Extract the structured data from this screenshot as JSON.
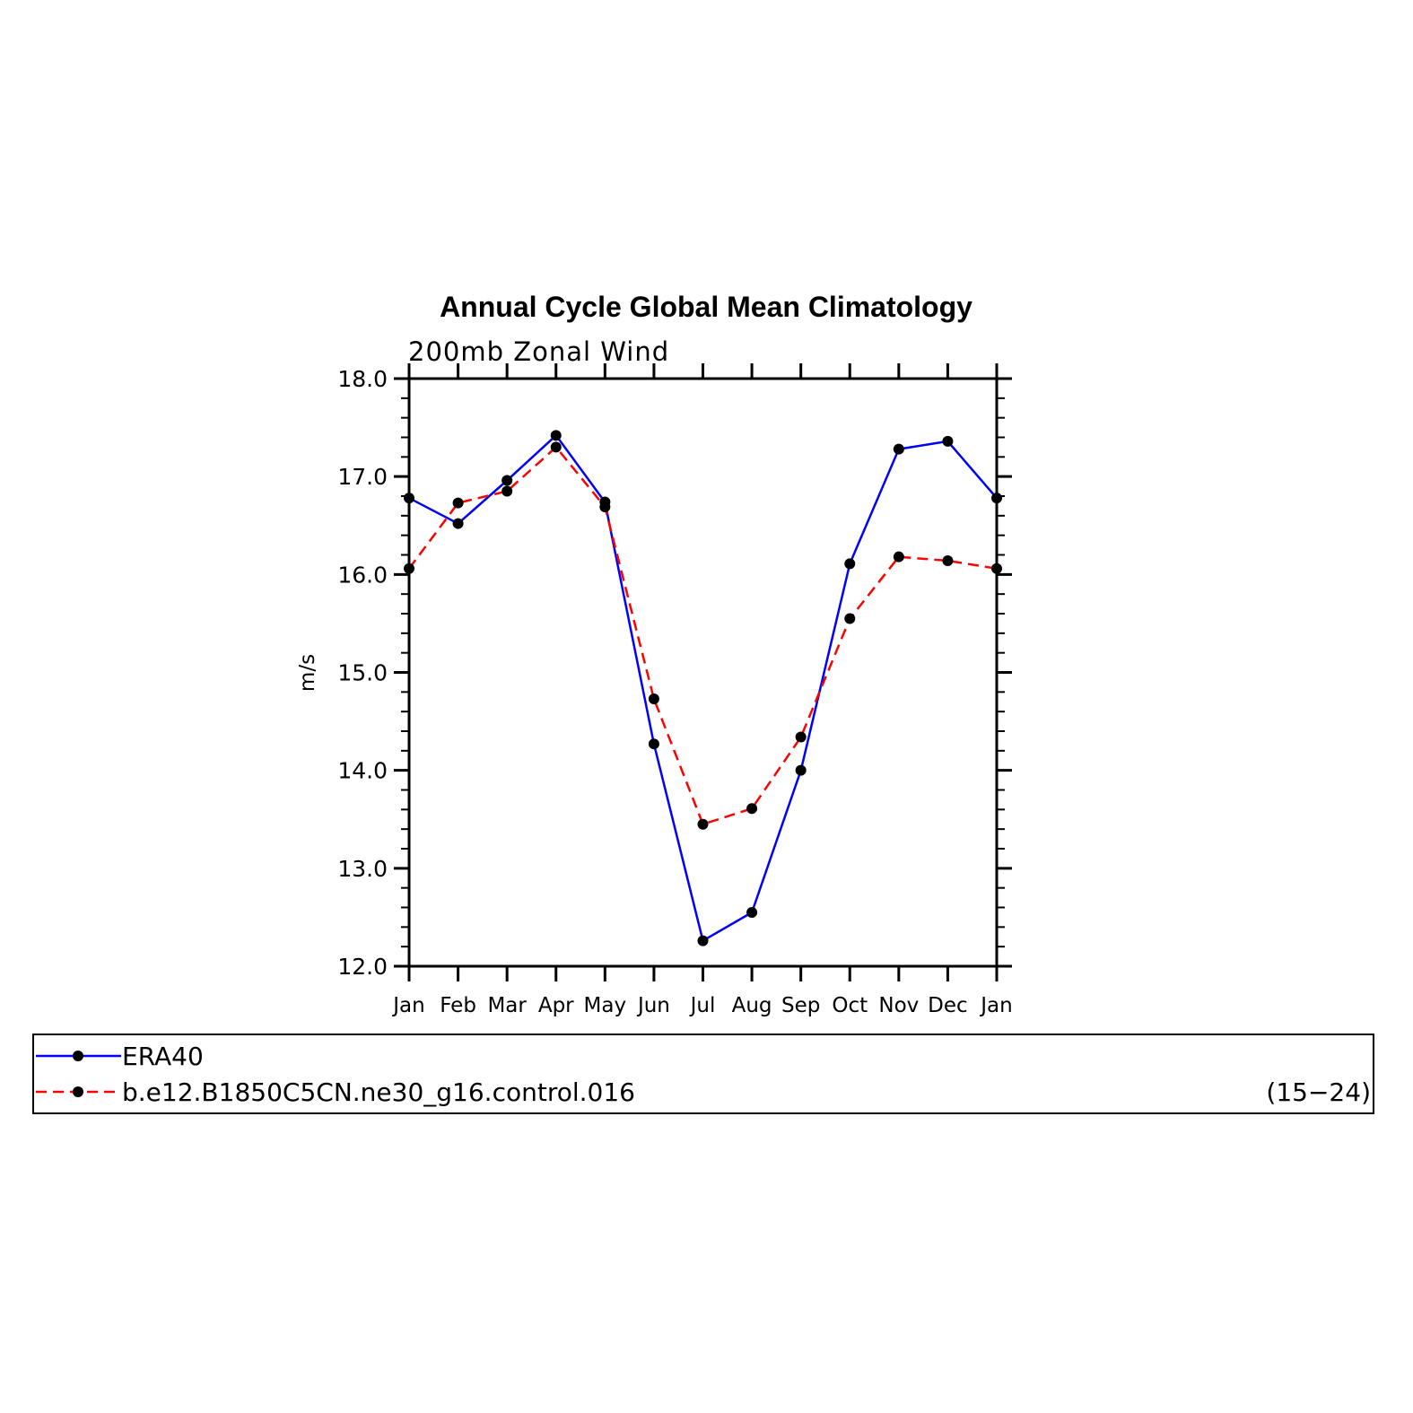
{
  "chart_data": {
    "type": "line",
    "title": "Annual Cycle Global Mean Climatology",
    "subtitle": "200mb Zonal Wind",
    "xlabel": "",
    "ylabel": "m/s",
    "categories": [
      "Jan",
      "Feb",
      "Mar",
      "Apr",
      "May",
      "Jun",
      "Jul",
      "Aug",
      "Sep",
      "Oct",
      "Nov",
      "Dec",
      "Jan"
    ],
    "ylim": [
      12.0,
      18.0
    ],
    "yticks": [
      "12.0",
      "13.0",
      "14.0",
      "15.0",
      "16.0",
      "17.0",
      "18.0"
    ],
    "grid": false,
    "series": [
      {
        "name": "ERA40",
        "color": "#0000ff",
        "dash": "solid",
        "marker": "dot",
        "values": [
          16.78,
          16.52,
          16.96,
          17.42,
          16.74,
          14.27,
          12.26,
          12.55,
          14.0,
          16.11,
          17.28,
          17.36,
          16.78
        ]
      },
      {
        "name": "b.e12.B1850C5CN.ne30_g16.control.016",
        "color": "#ff0000",
        "dash": "dashed",
        "marker": "dot",
        "values": [
          16.06,
          16.73,
          16.85,
          17.3,
          16.69,
          14.73,
          13.45,
          13.61,
          14.34,
          15.55,
          16.18,
          16.14,
          16.06
        ]
      }
    ],
    "legend": {
      "placement": "bottom",
      "note": "(15−24)"
    }
  }
}
